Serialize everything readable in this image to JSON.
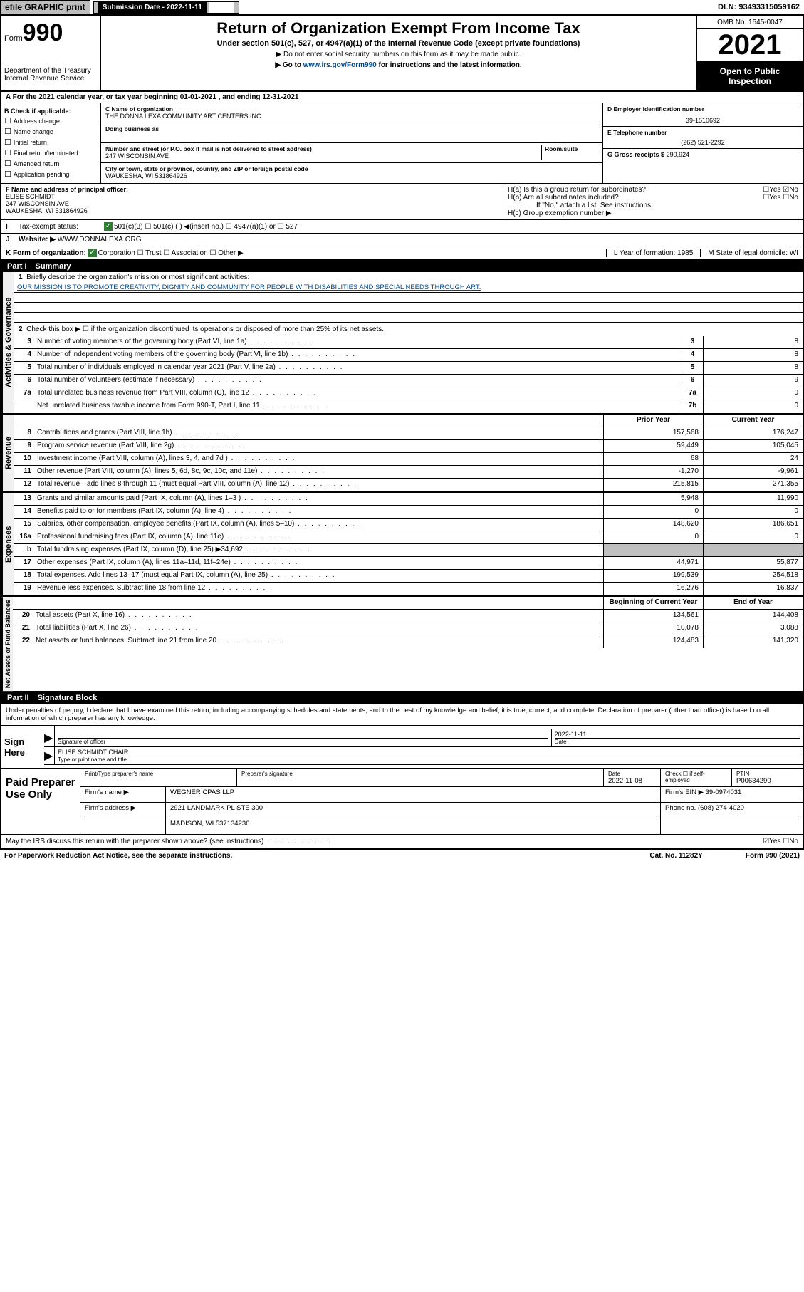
{
  "topbar": {
    "efile": "efile GRAPHIC print",
    "sub_date_lbl": "Submission Date - 2022-11-11",
    "dln": "DLN: 93493315059162"
  },
  "header": {
    "form_prefix": "Form",
    "form_num": "990",
    "dept": "Department of the Treasury\nInternal Revenue Service",
    "title": "Return of Organization Exempt From Income Tax",
    "sub1": "Under section 501(c), 527, or 4947(a)(1) of the Internal Revenue Code (except private foundations)",
    "sub2": "▶ Do not enter social security numbers on this form as it may be made public.",
    "sub3_pre": "▶ Go to ",
    "sub3_link": "www.irs.gov/Form990",
    "sub3_post": " for instructions and the latest information.",
    "omb": "OMB No. 1545-0047",
    "year": "2021",
    "open": "Open to Public Inspection"
  },
  "row_a": "A For the 2021 calendar year, or tax year beginning 01-01-2021     , and ending 12-31-2021",
  "col_b": {
    "hdr": "B Check if applicable:",
    "items": [
      "Address change",
      "Name change",
      "Initial return",
      "Final return/terminated",
      "Amended return",
      "Application pending"
    ]
  },
  "col_c": {
    "name_lbl": "C Name of organization",
    "name": "THE DONNA LEXA COMMUNITY ART CENTERS INC",
    "dba_lbl": "Doing business as",
    "dba": "",
    "addr_lbl": "Number and street (or P.O. box if mail is not delivered to street address)",
    "room_lbl": "Room/suite",
    "addr": "247 WISCONSIN AVE",
    "city_lbl": "City or town, state or province, country, and ZIP or foreign postal code",
    "city": "WAUKESHA, WI  531864926"
  },
  "col_d": {
    "ein_lbl": "D Employer identification number",
    "ein": "39-1510692",
    "tel_lbl": "E Telephone number",
    "tel": "(262) 521-2292",
    "gross_lbl": "G Gross receipts $",
    "gross": "290,924"
  },
  "officer": {
    "lbl": "F Name and address of principal officer:",
    "name": "ELISE SCHMIDT",
    "addr1": "247 WISCONSIN AVE",
    "addr2": "WAUKESHA, WI  531864926",
    "ha": "H(a)  Is this a group return for subordinates?",
    "ha_ans": "☐Yes ☑No",
    "hb": "H(b)  Are all subordinates included?",
    "hb_ans": "☐Yes ☐No",
    "hb_note": "If \"No,\" attach a list. See instructions.",
    "hc": "H(c)  Group exemption number ▶"
  },
  "line_i": {
    "lbl": "Tax-exempt status:",
    "opts": "501(c)(3)    ☐  501(c) (   ) ◀(insert no.)    ☐  4947(a)(1) or   ☐  527"
  },
  "line_j": {
    "lbl": "Website: ▶",
    "val": "WWW.DONNALEXA.ORG"
  },
  "line_k": {
    "lbl": "K Form of organization:",
    "opts": "Corporation  ☐ Trust  ☐ Association  ☐ Other ▶",
    "l": "L Year of formation: 1985",
    "m": "M State of legal domicile: WI"
  },
  "part1": {
    "num": "Part I",
    "title": "Summary"
  },
  "summary": {
    "q1": "Briefly describe the organization's mission or most significant activities:",
    "mission": "OUR MISSION IS TO PROMOTE CREATIVITY, DIGNITY AND COMMUNITY FOR PEOPLE WITH DISABILITIES AND SPECIAL NEEDS THROUGH ART.",
    "q2": "Check this box ▶ ☐  if the organization discontinued its operations or disposed of more than 25% of its net assets.",
    "rows": [
      {
        "n": "3",
        "t": "Number of voting members of the governing body (Part VI, line 1a)",
        "b": "3",
        "v": "8"
      },
      {
        "n": "4",
        "t": "Number of independent voting members of the governing body (Part VI, line 1b)",
        "b": "4",
        "v": "8"
      },
      {
        "n": "5",
        "t": "Total number of individuals employed in calendar year 2021 (Part V, line 2a)",
        "b": "5",
        "v": "8"
      },
      {
        "n": "6",
        "t": "Total number of volunteers (estimate if necessary)",
        "b": "6",
        "v": "9"
      },
      {
        "n": "7a",
        "t": "Total unrelated business revenue from Part VIII, column (C), line 12",
        "b": "7a",
        "v": "0"
      },
      {
        "n": "",
        "t": "Net unrelated business taxable income from Form 990-T, Part I, line 11",
        "b": "7b",
        "v": "0"
      }
    ]
  },
  "cols": {
    "prior": "Prior Year",
    "current": "Current Year",
    "boy": "Beginning of Current Year",
    "eoy": "End of Year"
  },
  "revenue": [
    {
      "n": "8",
      "t": "Contributions and grants (Part VIII, line 1h)",
      "p": "157,568",
      "c": "176,247"
    },
    {
      "n": "9",
      "t": "Program service revenue (Part VIII, line 2g)",
      "p": "59,449",
      "c": "105,045"
    },
    {
      "n": "10",
      "t": "Investment income (Part VIII, column (A), lines 3, 4, and 7d )",
      "p": "68",
      "c": "24"
    },
    {
      "n": "11",
      "t": "Other revenue (Part VIII, column (A), lines 5, 6d, 8c, 9c, 10c, and 11e)",
      "p": "-1,270",
      "c": "-9,961"
    },
    {
      "n": "12",
      "t": "Total revenue—add lines 8 through 11 (must equal Part VIII, column (A), line 12)",
      "p": "215,815",
      "c": "271,355"
    }
  ],
  "expenses": [
    {
      "n": "13",
      "t": "Grants and similar amounts paid (Part IX, column (A), lines 1–3 )",
      "p": "5,948",
      "c": "11,990"
    },
    {
      "n": "14",
      "t": "Benefits paid to or for members (Part IX, column (A), line 4)",
      "p": "0",
      "c": "0"
    },
    {
      "n": "15",
      "t": "Salaries, other compensation, employee benefits (Part IX, column (A), lines 5–10)",
      "p": "148,620",
      "c": "186,651"
    },
    {
      "n": "16a",
      "t": "Professional fundraising fees (Part IX, column (A), line 11e)",
      "p": "0",
      "c": "0"
    },
    {
      "n": "b",
      "t": "Total fundraising expenses (Part IX, column (D), line 25) ▶34,692",
      "p": "",
      "c": "",
      "shaded": true
    },
    {
      "n": "17",
      "t": "Other expenses (Part IX, column (A), lines 11a–11d, 11f–24e)",
      "p": "44,971",
      "c": "55,877"
    },
    {
      "n": "18",
      "t": "Total expenses. Add lines 13–17 (must equal Part IX, column (A), line 25)",
      "p": "199,539",
      "c": "254,518"
    },
    {
      "n": "19",
      "t": "Revenue less expenses. Subtract line 18 from line 12",
      "p": "16,276",
      "c": "16,837"
    }
  ],
  "netassets": [
    {
      "n": "20",
      "t": "Total assets (Part X, line 16)",
      "p": "134,561",
      "c": "144,408"
    },
    {
      "n": "21",
      "t": "Total liabilities (Part X, line 26)",
      "p": "10,078",
      "c": "3,088"
    },
    {
      "n": "22",
      "t": "Net assets or fund balances. Subtract line 21 from line 20",
      "p": "124,483",
      "c": "141,320"
    }
  ],
  "part2": {
    "num": "Part II",
    "title": "Signature Block"
  },
  "sig": {
    "decl": "Under penalties of perjury, I declare that I have examined this return, including accompanying schedules and statements, and to the best of my knowledge and belief, it is true, correct, and complete. Declaration of preparer (other than officer) is based on all information of which preparer has any knowledge.",
    "sign_here": "Sign Here",
    "sig_officer": "Signature of officer",
    "date": "2022-11-11",
    "date_lbl": "Date",
    "typed": "ELISE SCHMIDT CHAIR",
    "typed_lbl": "Type or print name and title"
  },
  "prep": {
    "title": "Paid Preparer Use Only",
    "h1": "Print/Type preparer's name",
    "h2": "Preparer's signature",
    "h3": "Date",
    "h3v": "2022-11-08",
    "h4": "Check ☐ if self-employed",
    "h5": "PTIN",
    "h5v": "P00634290",
    "firm_lbl": "Firm's name    ▶",
    "firm": "WEGNER CPAS LLP",
    "ein_lbl": "Firm's EIN ▶",
    "ein": "39-0974031",
    "addr_lbl": "Firm's address ▶",
    "addr1": "2921 LANDMARK PL STE 300",
    "addr2": "MADISON, WI  537134236",
    "phone_lbl": "Phone no.",
    "phone": "(608) 274-4020"
  },
  "footer": {
    "discuss": "May the IRS discuss this return with the preparer shown above? (see instructions)",
    "discuss_ans": "☑Yes ☐No",
    "paperwork": "For Paperwork Reduction Act Notice, see the separate instructions.",
    "cat": "Cat. No. 11282Y",
    "form": "Form 990 (2021)"
  },
  "sidelabels": {
    "gov": "Activities & Governance",
    "rev": "Revenue",
    "exp": "Expenses",
    "net": "Net Assets or Fund Balances"
  }
}
